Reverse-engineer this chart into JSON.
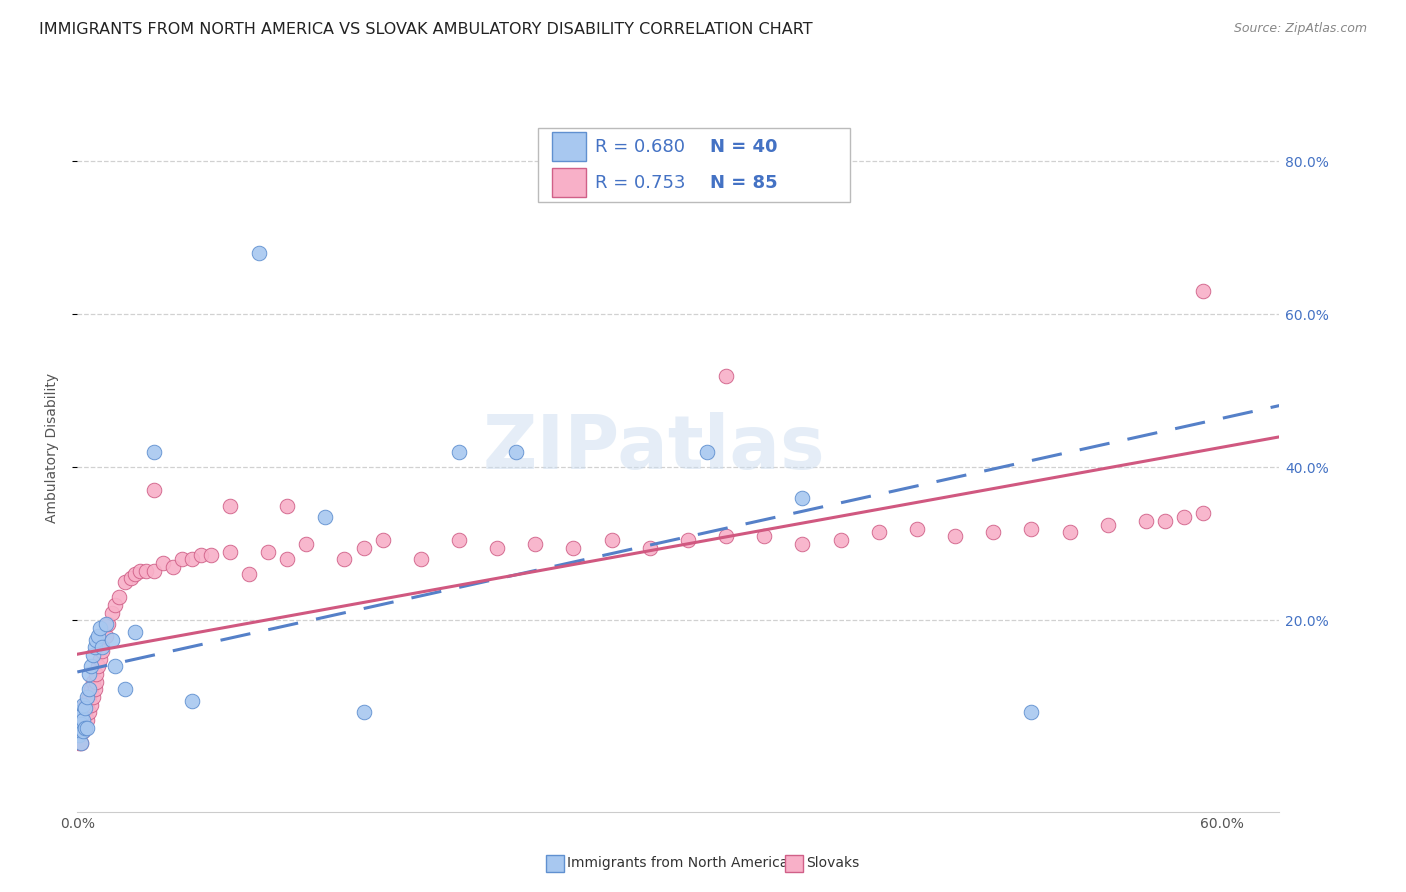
{
  "title": "IMMIGRANTS FROM NORTH AMERICA VS SLOVAK AMBULATORY DISABILITY CORRELATION CHART",
  "source": "Source: ZipAtlas.com",
  "ylabel": "Ambulatory Disability",
  "xlim": [
    0.0,
    0.63
  ],
  "ylim": [
    -0.05,
    0.9
  ],
  "plot_xlim": [
    0.0,
    0.6
  ],
  "ytick_vals": [
    0.2,
    0.4,
    0.6,
    0.8
  ],
  "ytick_labels": [
    "20.0%",
    "40.0%",
    "60.0%",
    "80.0%"
  ],
  "xtick_vals": [
    0.0,
    0.6
  ],
  "xtick_labels": [
    "0.0%",
    "60.0%"
  ],
  "s1_name": "Immigrants from North America",
  "s1_face": "#a8c8f0",
  "s1_edge": "#6090d0",
  "s1_line": "#5580c8",
  "s1_R": 0.68,
  "s1_N": 40,
  "s2_name": "Slovaks",
  "s2_face": "#f8b0c8",
  "s2_edge": "#d06088",
  "s2_line": "#d05880",
  "s2_R": 0.753,
  "s2_N": 85,
  "blue_text": "#4472c4",
  "watermark": "ZIPatlas",
  "bg": "#ffffff",
  "grid_color": "#cccccc",
  "title_fs": 11.5,
  "tick_fs": 10,
  "s1_x": [
    0.001,
    0.001,
    0.001,
    0.001,
    0.001,
    0.002,
    0.002,
    0.002,
    0.002,
    0.003,
    0.003,
    0.003,
    0.004,
    0.004,
    0.005,
    0.005,
    0.006,
    0.006,
    0.007,
    0.008,
    0.009,
    0.01,
    0.011,
    0.012,
    0.013,
    0.015,
    0.018,
    0.02,
    0.025,
    0.03,
    0.04,
    0.06,
    0.095,
    0.13,
    0.15,
    0.2,
    0.23,
    0.33,
    0.38,
    0.5
  ],
  "s1_y": [
    0.06,
    0.05,
    0.07,
    0.055,
    0.08,
    0.06,
    0.04,
    0.075,
    0.065,
    0.055,
    0.07,
    0.09,
    0.06,
    0.085,
    0.06,
    0.1,
    0.11,
    0.13,
    0.14,
    0.155,
    0.165,
    0.175,
    0.18,
    0.19,
    0.165,
    0.195,
    0.175,
    0.14,
    0.11,
    0.185,
    0.42,
    0.095,
    0.68,
    0.335,
    0.08,
    0.42,
    0.42,
    0.42,
    0.36,
    0.08
  ],
  "s2_x": [
    0.001,
    0.001,
    0.001,
    0.001,
    0.001,
    0.002,
    0.002,
    0.002,
    0.002,
    0.002,
    0.003,
    0.003,
    0.003,
    0.003,
    0.004,
    0.004,
    0.004,
    0.005,
    0.005,
    0.005,
    0.006,
    0.006,
    0.007,
    0.007,
    0.008,
    0.008,
    0.009,
    0.01,
    0.01,
    0.011,
    0.012,
    0.013,
    0.015,
    0.016,
    0.018,
    0.02,
    0.022,
    0.025,
    0.028,
    0.03,
    0.033,
    0.036,
    0.04,
    0.045,
    0.05,
    0.055,
    0.06,
    0.065,
    0.07,
    0.08,
    0.09,
    0.1,
    0.11,
    0.12,
    0.14,
    0.15,
    0.16,
    0.18,
    0.2,
    0.22,
    0.24,
    0.26,
    0.28,
    0.3,
    0.32,
    0.34,
    0.36,
    0.38,
    0.4,
    0.42,
    0.44,
    0.46,
    0.48,
    0.5,
    0.52,
    0.54,
    0.56,
    0.57,
    0.58,
    0.59,
    0.04,
    0.08,
    0.11,
    0.34,
    0.59
  ],
  "s2_y": [
    0.05,
    0.04,
    0.06,
    0.055,
    0.07,
    0.04,
    0.06,
    0.055,
    0.065,
    0.075,
    0.055,
    0.07,
    0.065,
    0.08,
    0.06,
    0.075,
    0.09,
    0.07,
    0.085,
    0.095,
    0.08,
    0.1,
    0.09,
    0.11,
    0.1,
    0.12,
    0.11,
    0.12,
    0.13,
    0.14,
    0.15,
    0.16,
    0.18,
    0.195,
    0.21,
    0.22,
    0.23,
    0.25,
    0.255,
    0.26,
    0.265,
    0.265,
    0.265,
    0.275,
    0.27,
    0.28,
    0.28,
    0.285,
    0.285,
    0.29,
    0.26,
    0.29,
    0.28,
    0.3,
    0.28,
    0.295,
    0.305,
    0.28,
    0.305,
    0.295,
    0.3,
    0.295,
    0.305,
    0.295,
    0.305,
    0.31,
    0.31,
    0.3,
    0.305,
    0.315,
    0.32,
    0.31,
    0.315,
    0.32,
    0.315,
    0.325,
    0.33,
    0.33,
    0.335,
    0.34,
    0.37,
    0.35,
    0.35,
    0.52,
    0.63
  ]
}
